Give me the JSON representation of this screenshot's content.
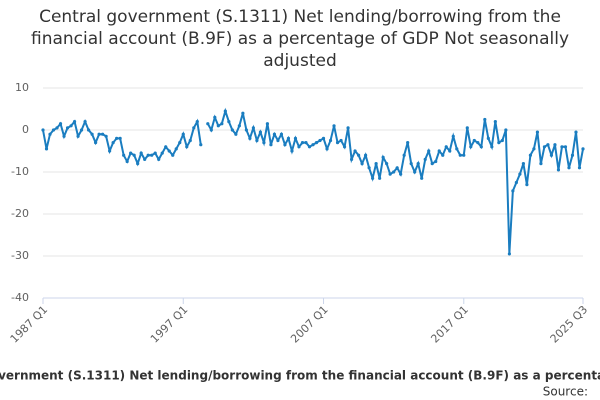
{
  "chart_data": {
    "type": "line",
    "title": "Central government (S.1311) Net lending/borrowing from the financial account (B.9F) as a percentage of GDP Not seasonally adjusted",
    "categories": [
      "1987 Q1",
      null,
      null,
      null,
      null,
      null,
      null,
      null,
      null,
      null,
      null,
      null,
      null,
      null,
      null,
      null,
      null,
      null,
      null,
      null,
      null,
      null,
      null,
      null,
      null,
      null,
      null,
      null,
      null,
      null,
      null,
      null,
      null,
      null,
      null,
      null,
      null,
      null,
      null,
      null,
      "1997 Q1",
      null,
      null,
      null,
      null,
      null,
      null,
      null,
      null,
      null,
      null,
      null,
      null,
      null,
      null,
      null,
      null,
      null,
      null,
      null,
      null,
      null,
      null,
      null,
      null,
      null,
      null,
      null,
      null,
      null,
      null,
      null,
      null,
      null,
      null,
      null,
      null,
      null,
      null,
      null,
      "2007 Q1",
      null,
      null,
      null,
      null,
      null,
      null,
      null,
      null,
      null,
      null,
      null,
      null,
      null,
      null,
      null,
      null,
      null,
      null,
      null,
      null,
      null,
      null,
      null,
      null,
      null,
      null,
      null,
      null,
      null,
      null,
      null,
      null,
      null,
      null,
      null,
      null,
      null,
      null,
      null,
      "2017 Q1",
      null,
      null,
      null,
      null,
      null,
      null,
      null,
      null,
      null,
      null,
      null,
      null,
      null,
      null,
      null,
      null,
      null,
      null,
      null,
      null,
      null,
      null,
      null,
      null,
      null,
      null,
      null,
      null,
      null,
      null,
      null,
      null,
      null,
      "2025 Q3"
    ],
    "series": [
      {
        "name": "Central government (S.1311) Net lending/borrowing from the financial account (B.9F) as a percentage of GDP",
        "color": "#1a7dc0",
        "values": [
          0,
          -4.5,
          -1,
          0,
          0.5,
          1.5,
          -1.5,
          0.5,
          1,
          2,
          -1.5,
          0,
          2,
          0,
          -1,
          -3,
          -1,
          -1,
          -1.5,
          -5,
          -3,
          -2,
          -2,
          -6,
          -7.5,
          -5.5,
          -6,
          -8,
          -5.5,
          -7,
          -6,
          -6,
          -5.5,
          -7,
          -5.5,
          -4,
          -5,
          -6,
          -4.5,
          -3,
          -1,
          -4,
          -2.5,
          0.5,
          2,
          -3.5,
          null,
          1.5,
          0,
          3,
          1,
          1.5,
          4.5,
          2,
          0,
          -1,
          1,
          4,
          0,
          -2,
          0.5,
          -2.5,
          -0.5,
          -3,
          1.5,
          -3.5,
          -1,
          -2.5,
          -1,
          -3.5,
          -2,
          -5,
          -2,
          -4,
          -3,
          -3,
          -4,
          -3.5,
          -3,
          -2.5,
          -2,
          -4.5,
          -2.5,
          1,
          -3,
          -2.5,
          -4,
          0.5,
          -7,
          -5,
          -6,
          -8,
          -6,
          -9,
          -11.5,
          -8,
          -11.5,
          -6.5,
          -8,
          -10.5,
          -10,
          -9,
          -10.5,
          -6,
          -3,
          -8,
          -10,
          -8,
          -11.5,
          -7,
          -5,
          -8,
          -7.5,
          -5,
          -6,
          -4,
          -5,
          -1.5,
          -4.5,
          -6,
          -6,
          0.5,
          -4,
          -2.5,
          -3,
          -4,
          2.5,
          -2,
          -4,
          2,
          -3,
          -2.5,
          0,
          -29.5,
          -14.5,
          -12.5,
          -10.5,
          -8,
          -13,
          -6,
          -4.5,
          -0.5,
          -8,
          -4,
          -3.5,
          -6,
          -3.5,
          -9.5,
          -4,
          -4,
          -9,
          -6,
          -0.5,
          -9,
          -4.5
        ]
      }
    ],
    "ylim": [
      -40,
      10
    ],
    "yticks": [
      10,
      0,
      -10,
      -20,
      -30,
      -40
    ],
    "grid": true,
    "source": "Source:"
  }
}
